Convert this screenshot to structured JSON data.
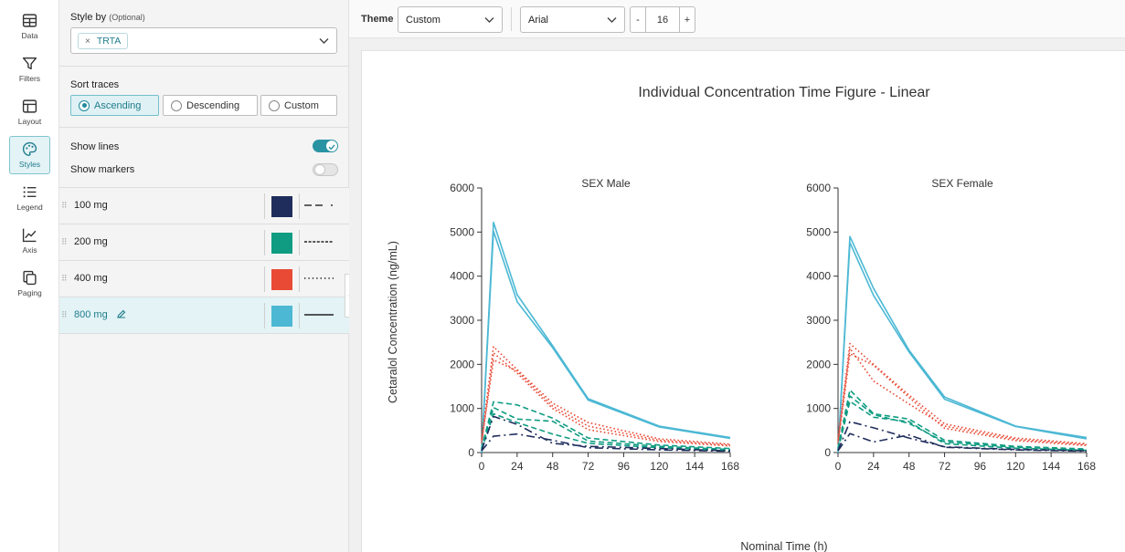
{
  "rail": [
    {
      "label": "Data",
      "icon": "table-icon"
    },
    {
      "label": "Filters",
      "icon": "filter-icon"
    },
    {
      "label": "Layout",
      "icon": "layout-icon"
    },
    {
      "label": "Styles",
      "icon": "palette-icon"
    },
    {
      "label": "Legend",
      "icon": "list-icon"
    },
    {
      "label": "Axis",
      "icon": "line-chart-icon"
    },
    {
      "label": "Paging",
      "icon": "copy-icon"
    }
  ],
  "panel": {
    "style_by_label": "Style by",
    "style_by_optional": "(Optional)",
    "style_by_chip": "TRTA",
    "style_by_chip_remove": "×",
    "sort_label": "Sort traces",
    "sort_options": [
      "Ascending",
      "Descending",
      "Custom"
    ],
    "sort_selected": "Ascending",
    "show_lines_label": "Show lines",
    "show_lines": true,
    "show_markers_label": "Show markers",
    "show_markers": false,
    "traces": [
      {
        "name": "100 mg",
        "color": "#1f2d5c",
        "dash": "long-dash-dot"
      },
      {
        "name": "200 mg",
        "color": "#0f9c82",
        "dash": "dashed"
      },
      {
        "name": "400 mg",
        "color": "#e84a35",
        "dash": "dotted"
      },
      {
        "name": "800 mg",
        "color": "#4cb8d4",
        "dash": "solid"
      }
    ]
  },
  "toolbar": {
    "theme_label": "Theme",
    "theme_value": "Custom",
    "font_value": "Arial",
    "size_minus": "-",
    "size_value": "16",
    "size_plus": "+"
  },
  "chart_data": {
    "type": "line",
    "title": "Individual Concentration Time Figure - Linear",
    "xlabel": "Nominal Time (h)",
    "ylabel": "Cetaralol Concentration (ng/mL)",
    "xlim": [
      0,
      168
    ],
    "ylim": [
      0,
      6000
    ],
    "xticks": [
      0,
      24,
      48,
      72,
      96,
      120,
      144,
      168
    ],
    "yticks": [
      0,
      1000,
      2000,
      3000,
      4000,
      5000,
      6000
    ],
    "grid": false,
    "x": [
      0,
      8,
      24,
      48,
      72,
      120,
      168
    ],
    "panels": [
      {
        "title": "SEX Male",
        "series": [
          {
            "group": "800 mg",
            "values": [
              0,
              5220,
              3580,
              2420,
              1220,
              600,
              340
            ]
          },
          {
            "group": "800 mg",
            "values": [
              0,
              5020,
              3420,
              2380,
              1190,
              580,
              320
            ]
          },
          {
            "group": "400 mg",
            "values": [
              300,
              2400,
              1880,
              1120,
              680,
              310,
              190
            ]
          },
          {
            "group": "400 mg",
            "values": [
              250,
              2100,
              1850,
              1050,
              600,
              280,
              170
            ]
          },
          {
            "group": "400 mg",
            "values": [
              200,
              2260,
              1800,
              1000,
              520,
              250,
              150
            ]
          },
          {
            "group": "200 mg",
            "values": [
              100,
              1150,
              1080,
              780,
              330,
              170,
              90
            ]
          },
          {
            "group": "200 mg",
            "values": [
              80,
              1020,
              760,
              710,
              260,
              140,
              70
            ]
          },
          {
            "group": "200 mg",
            "values": [
              60,
              880,
              680,
              420,
              210,
              110,
              50
            ]
          },
          {
            "group": "100 mg",
            "values": [
              50,
              820,
              640,
              210,
              140,
              90,
              40
            ]
          },
          {
            "group": "100 mg",
            "values": [
              40,
              370,
              420,
              280,
              110,
              60,
              30
            ]
          }
        ]
      },
      {
        "title": "SEX Female",
        "series": [
          {
            "group": "800 mg",
            "values": [
              0,
              4900,
              3720,
              2320,
              1260,
              600,
              340
            ]
          },
          {
            "group": "800 mg",
            "values": [
              0,
              4760,
              3560,
              2280,
              1210,
              590,
              310
            ]
          },
          {
            "group": "400 mg",
            "values": [
              300,
              2470,
              2000,
              1300,
              650,
              330,
              200
            ]
          },
          {
            "group": "400 mg",
            "values": [
              250,
              2360,
              1620,
              1100,
              600,
              300,
              180
            ]
          },
          {
            "group": "400 mg",
            "values": [
              200,
              2240,
              1980,
              1250,
              550,
              270,
              160
            ]
          },
          {
            "group": "200 mg",
            "values": [
              100,
              1420,
              880,
              760,
              280,
              140,
              80
            ]
          },
          {
            "group": "200 mg",
            "values": [
              80,
              1280,
              860,
              660,
              240,
              120,
              60
            ]
          },
          {
            "group": "200 mg",
            "values": [
              60,
              1160,
              800,
              700,
              200,
              100,
              50
            ]
          },
          {
            "group": "100 mg",
            "values": [
              50,
              700,
              560,
              330,
              130,
              70,
              40
            ]
          },
          {
            "group": "100 mg",
            "values": [
              40,
              430,
              240,
              400,
              120,
              60,
              30
            ]
          }
        ]
      }
    ]
  }
}
